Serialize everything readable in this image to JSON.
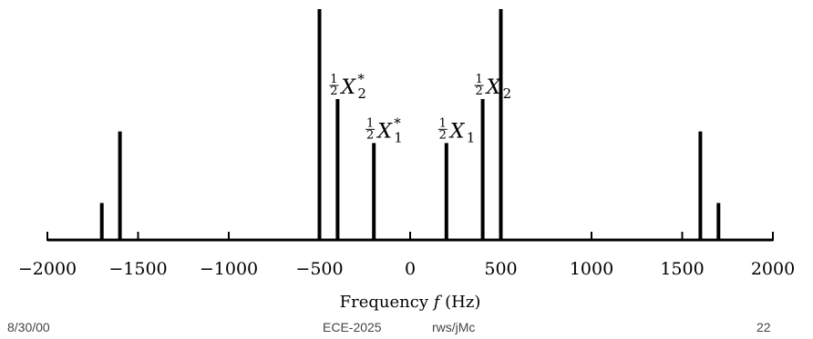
{
  "chart_data": {
    "type": "bar",
    "xlabel": "Frequency f (Hz)",
    "xlim": [
      -2000,
      2000
    ],
    "x_ticks": [
      -2000,
      -1500,
      -1000,
      -500,
      0,
      500,
      1000,
      1500,
      2000
    ],
    "x_tick_labels": [
      "−2000",
      "−1500",
      "−1000",
      "−500",
      "0",
      "500",
      "1000",
      "1500",
      "2000"
    ],
    "ylim": [
      0,
      1
    ],
    "grid": false,
    "lines": [
      {
        "x": -1700,
        "value": 0.16,
        "label": ""
      },
      {
        "x": -1600,
        "value": 0.47,
        "label": ""
      },
      {
        "x": -500,
        "value": 1.0,
        "label": ""
      },
      {
        "x": -400,
        "value": 0.61,
        "label_coef": "1/2",
        "label_var": "X",
        "label_sub": "2",
        "label_sup": "*"
      },
      {
        "x": -200,
        "value": 0.42,
        "label_coef": "1/2",
        "label_var": "X",
        "label_sub": "1",
        "label_sup": "*"
      },
      {
        "x": 200,
        "value": 0.42,
        "label_coef": "1/2",
        "label_var": "X",
        "label_sub": "1",
        "label_sup": ""
      },
      {
        "x": 400,
        "value": 0.61,
        "label_coef": "1/2",
        "label_var": "X",
        "label_sub": "2",
        "label_sup": ""
      },
      {
        "x": 500,
        "value": 1.0,
        "label": ""
      },
      {
        "x": 1600,
        "value": 0.47,
        "label": ""
      },
      {
        "x": 1700,
        "value": 0.16,
        "label": ""
      }
    ]
  },
  "footer": {
    "date": "8/30/00",
    "course": "ECE-2025",
    "authors": "rws/jMc",
    "page": "22"
  }
}
